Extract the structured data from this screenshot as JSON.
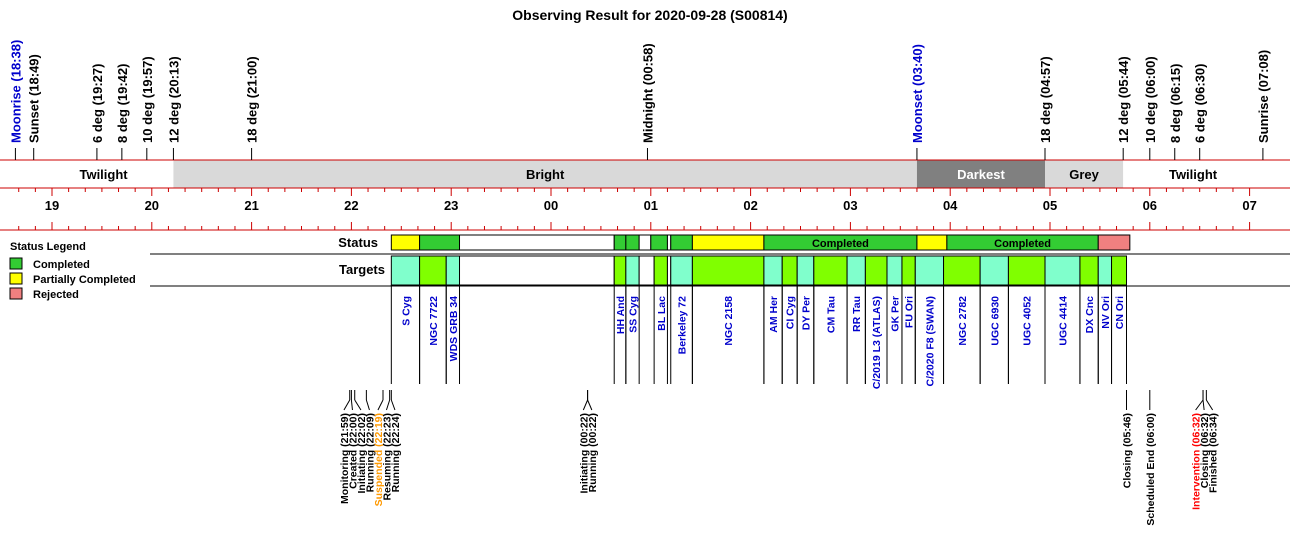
{
  "chart_data": {
    "type": "timeline",
    "title": "Observing Result for 2020-09-28 (S00814)",
    "time_range": [
      "18:38",
      "07:08"
    ],
    "hour_ticks": [
      "19",
      "20",
      "21",
      "22",
      "23",
      "00",
      "01",
      "02",
      "03",
      "04",
      "05",
      "06",
      "07"
    ],
    "events": [
      {
        "label": "Moonrise (18:38)",
        "time": "18:38",
        "color": "#0000cc"
      },
      {
        "label": "Sunset (18:49)",
        "time": "18:49",
        "color": "#000000"
      },
      {
        "label": "6 deg (19:27)",
        "time": "19:27",
        "color": "#000000"
      },
      {
        "label": "8 deg (19:42)",
        "time": "19:42",
        "color": "#000000"
      },
      {
        "label": "10 deg (19:57)",
        "time": "19:57",
        "color": "#000000"
      },
      {
        "label": "12 deg (20:13)",
        "time": "20:13",
        "color": "#000000"
      },
      {
        "label": "18 deg (21:00)",
        "time": "21:00",
        "color": "#000000"
      },
      {
        "label": "Midnight (00:58)",
        "time": "00:58",
        "color": "#000000"
      },
      {
        "label": "Moonset (03:40)",
        "time": "03:40",
        "color": "#0000cc"
      },
      {
        "label": "18 deg (04:57)",
        "time": "04:57",
        "color": "#000000"
      },
      {
        "label": "12 deg (05:44)",
        "time": "05:44",
        "color": "#000000"
      },
      {
        "label": "10 deg (06:00)",
        "time": "06:00",
        "color": "#000000"
      },
      {
        "label": "8 deg (06:15)",
        "time": "06:15",
        "color": "#000000"
      },
      {
        "label": "6 deg (06:30)",
        "time": "06:30",
        "color": "#000000"
      },
      {
        "label": "Sunrise (07:08)",
        "time": "07:08",
        "color": "#000000"
      }
    ],
    "sky_periods": [
      {
        "label": "",
        "start": "18:38",
        "end": "18:49",
        "color": "#ffffff"
      },
      {
        "label": "Twilight",
        "start": "18:49",
        "end": "20:13",
        "color": "#ffffff"
      },
      {
        "label": "Bright",
        "start": "20:13",
        "end": "03:40",
        "color": "#d9d9d9"
      },
      {
        "label": "Darkest",
        "start": "03:40",
        "end": "04:57",
        "color": "#808080",
        "text_color": "#ffffff"
      },
      {
        "label": "Grey",
        "start": "04:57",
        "end": "05:44",
        "color": "#d9d9d9"
      },
      {
        "label": "Twilight",
        "start": "05:44",
        "end": "07:08",
        "color": "#ffffff"
      }
    ],
    "row_labels": {
      "status": "Status",
      "targets": "Targets"
    },
    "legend": {
      "title": "Status Legend",
      "items": [
        {
          "label": "Completed",
          "color": "#33cc33"
        },
        {
          "label": "Partially Completed",
          "color": "#ffff00"
        },
        {
          "label": "Rejected",
          "color": "#f08080"
        }
      ]
    },
    "status_segments": [
      {
        "start": "22:24",
        "end": "22:41",
        "color": "#ffff00",
        "label": ""
      },
      {
        "start": "22:41",
        "end": "23:05",
        "color": "#33cc33",
        "label": ""
      },
      {
        "start": "23:05",
        "end": "00:38",
        "color": "#ffffff",
        "label": ""
      },
      {
        "start": "00:38",
        "end": "00:45",
        "color": "#33cc33",
        "label": ""
      },
      {
        "start": "00:45",
        "end": "00:53",
        "color": "#33cc33",
        "label": ""
      },
      {
        "start": "00:53",
        "end": "01:00",
        "color": "#ffffff",
        "label": ""
      },
      {
        "start": "01:00",
        "end": "01:10",
        "color": "#33cc33",
        "label": ""
      },
      {
        "start": "01:10",
        "end": "01:12",
        "color": "#ffffff",
        "label": ""
      },
      {
        "start": "01:12",
        "end": "01:25",
        "color": "#33cc33",
        "label": ""
      },
      {
        "start": "01:25",
        "end": "02:08",
        "color": "#ffff00",
        "label": ""
      },
      {
        "start": "02:08",
        "end": "03:40",
        "color": "#33cc33",
        "label": "Completed"
      },
      {
        "start": "03:40",
        "end": "03:58",
        "color": "#ffff00",
        "label": ""
      },
      {
        "start": "03:58",
        "end": "05:29",
        "color": "#33cc33",
        "label": "Completed"
      },
      {
        "start": "05:29",
        "end": "05:48",
        "color": "#f08080",
        "label": ""
      }
    ],
    "targets": [
      {
        "name": "S Cyg",
        "start": "22:24",
        "end": "22:41",
        "color": "#80ffcc"
      },
      {
        "name": "NGC 7722",
        "start": "22:41",
        "end": "22:57",
        "color": "#80ff00"
      },
      {
        "name": "WDS GRB 34",
        "start": "22:57",
        "end": "23:05",
        "color": "#80ffcc"
      },
      {
        "name": "",
        "start": "23:05",
        "end": "00:38",
        "color": "#ffffff"
      },
      {
        "name": "HH And",
        "start": "00:38",
        "end": "00:45",
        "color": "#80ff00"
      },
      {
        "name": "SS Cyg",
        "start": "00:45",
        "end": "00:53",
        "color": "#80ffcc"
      },
      {
        "name": "",
        "start": "00:53",
        "end": "01:02",
        "color": "#ffffff"
      },
      {
        "name": "BL Lac",
        "start": "01:02",
        "end": "01:10",
        "color": "#80ff00"
      },
      {
        "name": "",
        "start": "01:10",
        "end": "01:12",
        "color": "#ffffff"
      },
      {
        "name": "Berkeley 72",
        "start": "01:12",
        "end": "01:25",
        "color": "#80ffcc"
      },
      {
        "name": "NGC 2158",
        "start": "01:25",
        "end": "02:08",
        "color": "#80ff00"
      },
      {
        "name": "AM Her",
        "start": "02:08",
        "end": "02:19",
        "color": "#80ffcc"
      },
      {
        "name": "CI Cyg",
        "start": "02:19",
        "end": "02:28",
        "color": "#80ff00"
      },
      {
        "name": "DY Per",
        "start": "02:28",
        "end": "02:38",
        "color": "#80ffcc"
      },
      {
        "name": "CM Tau",
        "start": "02:38",
        "end": "02:58",
        "color": "#80ff00"
      },
      {
        "name": "RR Tau",
        "start": "02:58",
        "end": "03:09",
        "color": "#80ffcc"
      },
      {
        "name": "C/2019 L3 (ATLAS)",
        "start": "03:09",
        "end": "03:22",
        "color": "#80ff00"
      },
      {
        "name": "GK Per",
        "start": "03:22",
        "end": "03:31",
        "color": "#80ffcc"
      },
      {
        "name": "FU Ori",
        "start": "03:31",
        "end": "03:39",
        "color": "#80ff00"
      },
      {
        "name": "C/2020 F8 (SWAN)",
        "start": "03:39",
        "end": "03:56",
        "color": "#80ffcc"
      },
      {
        "name": "NGC 2782",
        "start": "03:56",
        "end": "04:18",
        "color": "#80ff00"
      },
      {
        "name": "UGC 6930",
        "start": "04:18",
        "end": "04:35",
        "color": "#80ffcc"
      },
      {
        "name": "UGC 4052",
        "start": "04:35",
        "end": "04:57",
        "color": "#80ff00"
      },
      {
        "name": "UGC 4414",
        "start": "04:57",
        "end": "05:18",
        "color": "#80ffcc"
      },
      {
        "name": "DX Cnc",
        "start": "05:18",
        "end": "05:29",
        "color": "#80ff00"
      },
      {
        "name": "NV Ori",
        "start": "05:29",
        "end": "05:37",
        "color": "#80ffcc"
      },
      {
        "name": "CN Ori",
        "start": "05:37",
        "end": "05:46",
        "color": "#80ff00"
      }
    ],
    "log_events": [
      {
        "label": "Monitoring (21:59)",
        "time": "21:59",
        "color": "#000000"
      },
      {
        "label": "Created (22:00)",
        "time": "22:00",
        "color": "#000000"
      },
      {
        "label": "Initiating (22:02)",
        "time": "22:02",
        "color": "#000000"
      },
      {
        "label": "Running (22:09)",
        "time": "22:09",
        "color": "#000000"
      },
      {
        "label": "Suspended (22:19)",
        "time": "22:19",
        "color": "#ff9900"
      },
      {
        "label": "Resuming (22:23)",
        "time": "22:23",
        "color": "#000000"
      },
      {
        "label": "Running (22:24)",
        "time": "22:24",
        "color": "#000000"
      },
      {
        "label": "Initiating (00:22)",
        "time": "00:22",
        "color": "#000000"
      },
      {
        "label": "Running (00:22)",
        "time": "00:22",
        "color": "#000000"
      },
      {
        "label": "Closing (05:46)",
        "time": "05:46",
        "color": "#000000"
      },
      {
        "label": "Scheduled End (06:00)",
        "time": "06:00",
        "color": "#000000"
      },
      {
        "label": "Intervention (06:32)",
        "time": "06:32",
        "color": "#ff0000"
      },
      {
        "label": "Closing (06:32)",
        "time": "06:32",
        "color": "#000000"
      },
      {
        "label": "Finished (06:34)",
        "time": "06:34",
        "color": "#000000"
      }
    ]
  }
}
